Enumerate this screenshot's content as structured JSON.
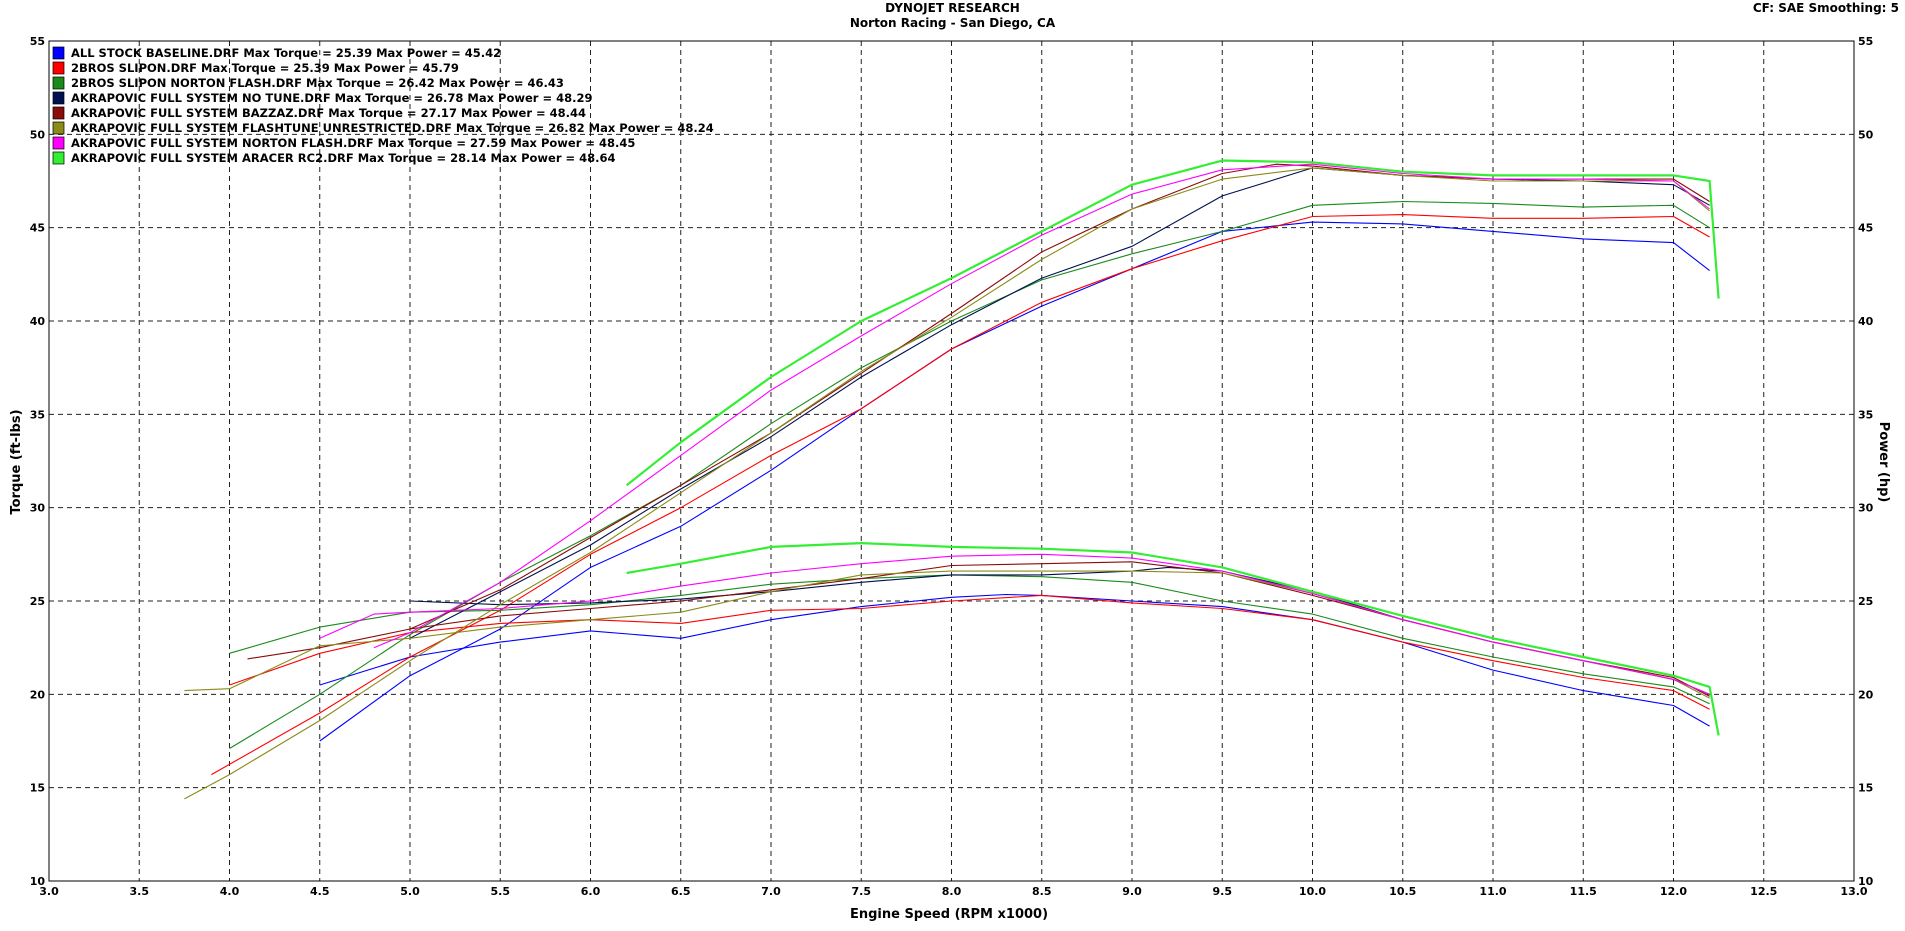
{
  "header": {
    "title": "DYNOJET RESEARCH",
    "subtitle": "Norton Racing - San Diego, CA",
    "settings": "CF: SAE  Smoothing: 5"
  },
  "chart_data": {
    "type": "line",
    "title": "DYNOJET RESEARCH",
    "subtitle": "Norton Racing - San Diego, CA",
    "xlabel": "Engine Speed (RPM x1000)",
    "ylabel_left": "Torque (ft-lbs)",
    "ylabel_right": "Power (hp)",
    "xlim": [
      3.0,
      13.0
    ],
    "ylim": [
      10,
      55
    ],
    "xticks": [
      "3.0",
      "3.5",
      "4.0",
      "4.5",
      "5.0",
      "5.5",
      "6.0",
      "6.5",
      "7.0",
      "7.5",
      "8.0",
      "8.5",
      "9.0",
      "9.5",
      "10.0",
      "10.5",
      "11.0",
      "11.5",
      "12.0",
      "12.5",
      "13.0"
    ],
    "yticks": [
      "10",
      "15",
      "20",
      "25",
      "30",
      "35",
      "40",
      "45",
      "50",
      "55"
    ],
    "grid": "dashed",
    "legend_position": "top-left",
    "series": [
      {
        "name": "ALL STOCK BASELINE.DRF Max Torque = 25.39 Max Power = 45.42",
        "color": "#0000ff",
        "torque": [
          [
            4.5,
            20.5
          ],
          [
            5.0,
            22.0
          ],
          [
            5.5,
            22.8
          ],
          [
            6.0,
            23.4
          ],
          [
            6.5,
            23.0
          ],
          [
            7.0,
            24.0
          ],
          [
            7.5,
            24.7
          ],
          [
            8.0,
            25.2
          ],
          [
            8.3,
            25.35
          ],
          [
            8.5,
            25.3
          ],
          [
            9.0,
            25.0
          ],
          [
            9.5,
            24.7
          ],
          [
            10.0,
            24.0
          ],
          [
            10.5,
            22.8
          ],
          [
            11.0,
            21.3
          ],
          [
            11.5,
            20.2
          ],
          [
            12.0,
            19.4
          ],
          [
            12.2,
            18.3
          ]
        ],
        "power": [
          [
            4.5,
            17.5
          ],
          [
            5.0,
            21.0
          ],
          [
            5.5,
            23.5
          ],
          [
            6.0,
            26.8
          ],
          [
            6.5,
            29.0
          ],
          [
            7.0,
            32.0
          ],
          [
            7.5,
            35.3
          ],
          [
            8.0,
            38.5
          ],
          [
            8.5,
            40.8
          ],
          [
            9.0,
            42.8
          ],
          [
            9.5,
            44.8
          ],
          [
            10.0,
            45.3
          ],
          [
            10.5,
            45.2
          ],
          [
            11.0,
            44.8
          ],
          [
            11.5,
            44.4
          ],
          [
            12.0,
            44.2
          ],
          [
            12.2,
            42.7
          ]
        ]
      },
      {
        "name": "2BROS SLIPON.DRF Max Torque = 25.39 Max Power = 45.79",
        "color": "#ff0000",
        "torque": [
          [
            4.0,
            20.5
          ],
          [
            4.5,
            22.2
          ],
          [
            5.0,
            23.3
          ],
          [
            5.5,
            23.8
          ],
          [
            6.0,
            24.0
          ],
          [
            6.5,
            23.8
          ],
          [
            7.0,
            24.5
          ],
          [
            7.5,
            24.6
          ],
          [
            8.0,
            25.0
          ],
          [
            8.5,
            25.3
          ],
          [
            9.0,
            24.9
          ],
          [
            9.5,
            24.6
          ],
          [
            10.0,
            24.0
          ],
          [
            10.5,
            22.8
          ],
          [
            11.0,
            21.8
          ],
          [
            11.5,
            20.9
          ],
          [
            12.0,
            20.2
          ],
          [
            12.2,
            19.2
          ]
        ],
        "power": [
          [
            3.9,
            15.7
          ],
          [
            4.5,
            19.0
          ],
          [
            5.0,
            22.0
          ],
          [
            5.5,
            24.5
          ],
          [
            6.0,
            27.5
          ],
          [
            6.5,
            30.0
          ],
          [
            7.0,
            32.8
          ],
          [
            7.5,
            35.3
          ],
          [
            8.0,
            38.5
          ],
          [
            8.5,
            41.0
          ],
          [
            9.0,
            42.8
          ],
          [
            9.5,
            44.3
          ],
          [
            10.0,
            45.6
          ],
          [
            10.5,
            45.7
          ],
          [
            11.0,
            45.5
          ],
          [
            11.5,
            45.5
          ],
          [
            12.0,
            45.6
          ],
          [
            12.2,
            44.5
          ]
        ]
      },
      {
        "name": "2BROS SLIPON NORTON FLASH.DRF Max Torque = 26.42 Max Power = 46.43",
        "color": "#1a8a1a",
        "torque": [
          [
            4.0,
            22.2
          ],
          [
            4.5,
            23.6
          ],
          [
            5.0,
            24.4
          ],
          [
            5.5,
            24.5
          ],
          [
            6.0,
            24.8
          ],
          [
            6.5,
            25.3
          ],
          [
            7.0,
            25.9
          ],
          [
            7.5,
            26.2
          ],
          [
            8.0,
            26.4
          ],
          [
            8.5,
            26.3
          ],
          [
            9.0,
            26.0
          ],
          [
            9.5,
            25.0
          ],
          [
            10.0,
            24.3
          ],
          [
            10.5,
            23.0
          ],
          [
            11.0,
            22.0
          ],
          [
            11.5,
            21.1
          ],
          [
            12.0,
            20.4
          ],
          [
            12.2,
            19.5
          ]
        ],
        "power": [
          [
            4.0,
            17.1
          ],
          [
            4.5,
            20.0
          ],
          [
            5.0,
            23.2
          ],
          [
            5.5,
            26.0
          ],
          [
            6.0,
            28.5
          ],
          [
            6.5,
            31.2
          ],
          [
            7.0,
            34.5
          ],
          [
            7.5,
            37.5
          ],
          [
            8.0,
            40.0
          ],
          [
            8.5,
            42.2
          ],
          [
            9.0,
            43.6
          ],
          [
            9.5,
            44.8
          ],
          [
            10.0,
            46.2
          ],
          [
            10.5,
            46.4
          ],
          [
            11.0,
            46.3
          ],
          [
            11.5,
            46.1
          ],
          [
            12.0,
            46.2
          ],
          [
            12.2,
            45.0
          ]
        ]
      },
      {
        "name": "AKRAPOVIC FULL SYSTEM NO TUNE.DRF Max Torque = 26.78 Max Power = 48.29",
        "color": "#001050",
        "torque": [
          [
            5.0,
            25.0
          ],
          [
            5.5,
            24.8
          ],
          [
            6.0,
            24.9
          ],
          [
            6.5,
            25.1
          ],
          [
            7.0,
            25.5
          ],
          [
            7.5,
            26.0
          ],
          [
            8.0,
            26.4
          ],
          [
            8.5,
            26.4
          ],
          [
            9.0,
            26.6
          ],
          [
            9.2,
            26.8
          ],
          [
            9.5,
            26.6
          ],
          [
            10.0,
            25.5
          ],
          [
            10.5,
            24.0
          ],
          [
            11.0,
            22.8
          ],
          [
            11.5,
            21.8
          ],
          [
            12.0,
            20.8
          ],
          [
            12.2,
            20.0
          ]
        ],
        "power": [
          [
            5.0,
            23.0
          ],
          [
            5.5,
            25.5
          ],
          [
            6.0,
            28.0
          ],
          [
            6.5,
            31.0
          ],
          [
            7.0,
            33.8
          ],
          [
            7.5,
            37.0
          ],
          [
            8.0,
            39.8
          ],
          [
            8.5,
            42.3
          ],
          [
            9.0,
            44.0
          ],
          [
            9.5,
            46.7
          ],
          [
            10.0,
            48.2
          ],
          [
            10.5,
            47.8
          ],
          [
            11.0,
            47.6
          ],
          [
            11.5,
            47.5
          ],
          [
            12.0,
            47.3
          ],
          [
            12.2,
            46.2
          ]
        ]
      },
      {
        "name": "AKRAPOVIC FULL SYSTEM BAZZAZ.DRF Max Torque = 27.17 Max Power = 48.44",
        "color": "#8b0a0a",
        "torque": [
          [
            4.1,
            21.9
          ],
          [
            4.5,
            22.5
          ],
          [
            5.0,
            23.5
          ],
          [
            5.5,
            24.2
          ],
          [
            6.0,
            24.6
          ],
          [
            6.5,
            25.0
          ],
          [
            7.0,
            25.6
          ],
          [
            7.5,
            26.2
          ],
          [
            8.0,
            26.9
          ],
          [
            8.5,
            27.0
          ],
          [
            9.0,
            27.1
          ],
          [
            9.5,
            26.5
          ],
          [
            10.0,
            25.3
          ],
          [
            10.5,
            24.0
          ],
          [
            11.0,
            22.8
          ],
          [
            11.5,
            21.8
          ],
          [
            12.0,
            20.9
          ],
          [
            12.2,
            19.9
          ]
        ],
        "power": [
          [
            5.0,
            23.5
          ],
          [
            5.5,
            25.6
          ],
          [
            6.0,
            28.4
          ],
          [
            6.5,
            31.2
          ],
          [
            7.0,
            34.0
          ],
          [
            7.5,
            37.2
          ],
          [
            8.0,
            40.4
          ],
          [
            8.5,
            43.7
          ],
          [
            9.0,
            46.0
          ],
          [
            9.5,
            47.9
          ],
          [
            9.8,
            48.4
          ],
          [
            10.0,
            48.3
          ],
          [
            10.5,
            47.8
          ],
          [
            11.0,
            47.6
          ],
          [
            11.5,
            47.6
          ],
          [
            12.0,
            47.6
          ],
          [
            12.2,
            46.4
          ]
        ]
      },
      {
        "name": "AKRAPOVIC FULL SYSTEM FLASHTUNE UNRESTRICTED.DRF Max Torque = 26.82 Max Power = 48.24",
        "color": "#8b8b18",
        "torque": [
          [
            3.75,
            20.2
          ],
          [
            4.0,
            20.3
          ],
          [
            4.5,
            22.6
          ],
          [
            5.0,
            23.0
          ],
          [
            5.5,
            23.6
          ],
          [
            6.0,
            24.0
          ],
          [
            6.5,
            24.4
          ],
          [
            7.0,
            25.5
          ],
          [
            7.5,
            26.4
          ],
          [
            8.0,
            26.6
          ],
          [
            8.5,
            26.6
          ],
          [
            9.0,
            26.6
          ],
          [
            9.5,
            26.5
          ],
          [
            10.0,
            25.4
          ],
          [
            10.5,
            24.0
          ],
          [
            11.0,
            22.8
          ],
          [
            11.5,
            21.8
          ],
          [
            12.0,
            20.8
          ],
          [
            12.2,
            19.8
          ]
        ],
        "power": [
          [
            3.75,
            14.4
          ],
          [
            4.0,
            15.7
          ],
          [
            4.5,
            18.6
          ],
          [
            5.0,
            21.8
          ],
          [
            5.5,
            24.8
          ],
          [
            6.0,
            27.6
          ],
          [
            6.5,
            30.8
          ],
          [
            7.0,
            34.0
          ],
          [
            7.5,
            37.3
          ],
          [
            8.0,
            40.2
          ],
          [
            8.5,
            43.3
          ],
          [
            9.0,
            46.0
          ],
          [
            9.5,
            47.6
          ],
          [
            10.0,
            48.2
          ],
          [
            10.5,
            47.8
          ],
          [
            11.0,
            47.5
          ],
          [
            11.5,
            47.5
          ],
          [
            12.0,
            47.5
          ],
          [
            12.2,
            45.9
          ]
        ]
      },
      {
        "name": "AKRAPOVIC FULL SYSTEM NORTON FLASH.DRF Max Torque = 27.59 Max Power = 48.45",
        "color": "#ff00ff",
        "torque": [
          [
            4.5,
            23.0
          ],
          [
            4.8,
            24.3
          ],
          [
            5.0,
            24.4
          ],
          [
            5.5,
            24.6
          ],
          [
            6.0,
            25.0
          ],
          [
            6.5,
            25.8
          ],
          [
            7.0,
            26.5
          ],
          [
            7.5,
            27.0
          ],
          [
            8.0,
            27.4
          ],
          [
            8.5,
            27.5
          ],
          [
            9.0,
            27.3
          ],
          [
            9.5,
            26.6
          ],
          [
            10.0,
            25.4
          ],
          [
            10.5,
            24.0
          ],
          [
            11.0,
            22.8
          ],
          [
            11.5,
            21.8
          ],
          [
            12.0,
            20.8
          ],
          [
            12.2,
            20.0
          ]
        ],
        "power": [
          [
            4.8,
            22.5
          ],
          [
            5.0,
            23.3
          ],
          [
            5.5,
            26.0
          ],
          [
            6.0,
            29.3
          ],
          [
            6.5,
            32.8
          ],
          [
            7.0,
            36.3
          ],
          [
            7.5,
            39.2
          ],
          [
            8.0,
            42.0
          ],
          [
            8.5,
            44.6
          ],
          [
            9.0,
            46.8
          ],
          [
            9.5,
            48.1
          ],
          [
            10.0,
            48.4
          ],
          [
            10.5,
            47.9
          ],
          [
            11.0,
            47.6
          ],
          [
            11.5,
            47.6
          ],
          [
            12.0,
            47.5
          ],
          [
            12.2,
            46.0
          ]
        ]
      },
      {
        "name": "AKRAPOVIC FULL SYSTEM ARACER RC2.DRF Max Torque = 28.14 Max Power = 48.64",
        "color": "#33ee33",
        "torque": [
          [
            6.2,
            26.5
          ],
          [
            6.5,
            27.0
          ],
          [
            7.0,
            27.9
          ],
          [
            7.5,
            28.1
          ],
          [
            8.0,
            27.9
          ],
          [
            8.5,
            27.8
          ],
          [
            9.0,
            27.6
          ],
          [
            9.5,
            26.8
          ],
          [
            10.0,
            25.5
          ],
          [
            10.5,
            24.2
          ],
          [
            11.0,
            23.0
          ],
          [
            11.5,
            22.0
          ],
          [
            12.0,
            21.0
          ],
          [
            12.2,
            20.4
          ],
          [
            12.25,
            17.8
          ]
        ],
        "power": [
          [
            6.2,
            31.2
          ],
          [
            6.5,
            33.5
          ],
          [
            7.0,
            37.0
          ],
          [
            7.5,
            40.0
          ],
          [
            8.0,
            42.3
          ],
          [
            8.5,
            44.8
          ],
          [
            9.0,
            47.3
          ],
          [
            9.5,
            48.6
          ],
          [
            10.0,
            48.5
          ],
          [
            10.5,
            48.0
          ],
          [
            11.0,
            47.8
          ],
          [
            11.5,
            47.8
          ],
          [
            12.0,
            47.8
          ],
          [
            12.2,
            47.5
          ],
          [
            12.25,
            41.2
          ]
        ]
      }
    ]
  }
}
